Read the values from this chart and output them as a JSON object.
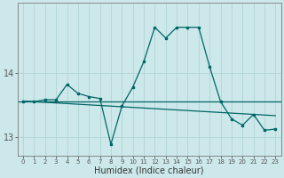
{
  "xlabel": "Humidex (Indice chaleur)",
  "background_color": "#cce8ea",
  "grid_color": "#b0d4d4",
  "line_color": "#006666",
  "x_values": [
    0,
    1,
    2,
    3,
    4,
    5,
    6,
    7,
    8,
    9,
    10,
    11,
    12,
    13,
    14,
    15,
    16,
    17,
    18,
    19,
    20,
    21,
    22,
    23
  ],
  "y_main": [
    13.55,
    13.55,
    13.58,
    13.58,
    13.82,
    13.68,
    13.63,
    13.6,
    12.88,
    13.48,
    13.78,
    14.18,
    14.72,
    14.55,
    14.72,
    14.72,
    14.72,
    14.1,
    13.55,
    13.28,
    13.18,
    13.35,
    13.1,
    13.12
  ],
  "y_trend": [
    13.56,
    13.55,
    13.54,
    13.53,
    13.52,
    13.51,
    13.5,
    13.49,
    13.48,
    13.47,
    13.46,
    13.45,
    13.44,
    13.43,
    13.42,
    13.41,
    13.4,
    13.39,
    13.38,
    13.37,
    13.36,
    13.35,
    13.34,
    13.33
  ],
  "y_flat": 13.55,
  "ylim": [
    12.7,
    15.1
  ],
  "yticks": [
    13,
    14
  ],
  "xlim": [
    -0.5,
    23.5
  ]
}
